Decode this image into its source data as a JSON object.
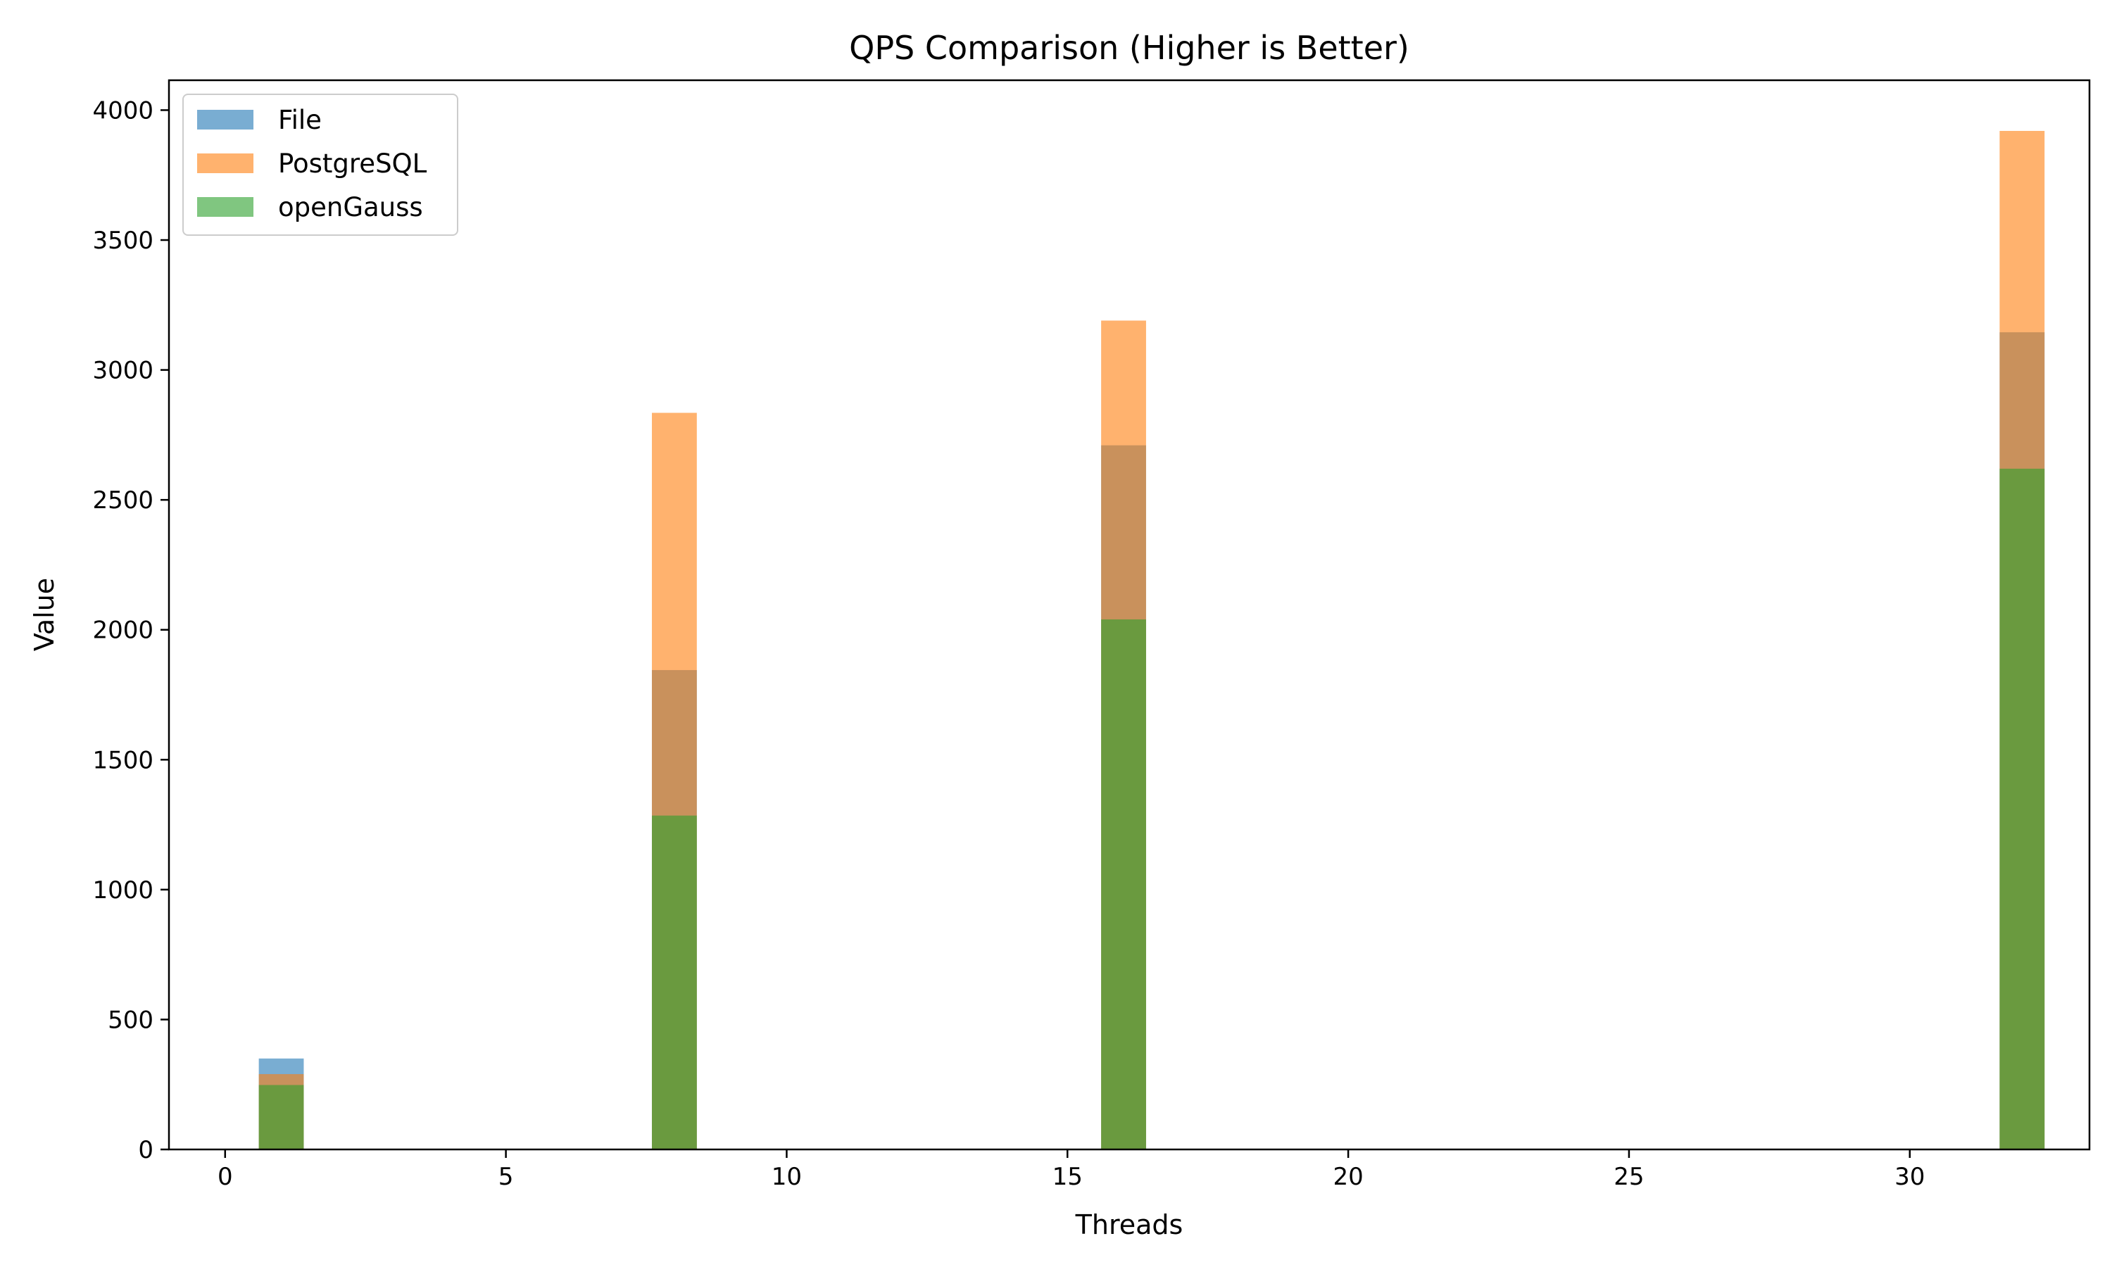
{
  "chart_data": {
    "type": "bar",
    "title": "QPS Comparison (Higher is Better)",
    "xlabel": "Threads",
    "ylabel": "Value",
    "xlim": [
      -1,
      33.2
    ],
    "ylim": [
      0,
      4115
    ],
    "xticks": [
      0,
      5,
      10,
      15,
      20,
      25,
      30
    ],
    "yticks": [
      0,
      500,
      1000,
      1500,
      2000,
      2500,
      3000,
      3500,
      4000
    ],
    "bar_width": 0.8,
    "bar_alpha": 0.6,
    "legend_position": "upper-left",
    "grid": false,
    "x": [
      1,
      8,
      16,
      32
    ],
    "series": [
      {
        "name": "File",
        "color": "#1f77b4",
        "values": [
          350,
          1845,
          2710,
          3145
        ]
      },
      {
        "name": "PostgreSQL",
        "color": "#ff7f0e",
        "values": [
          290,
          2835,
          3190,
          3920
        ]
      },
      {
        "name": "openGauss",
        "color": "#2ca02c",
        "values": [
          248,
          1285,
          2040,
          2620
        ]
      }
    ]
  }
}
